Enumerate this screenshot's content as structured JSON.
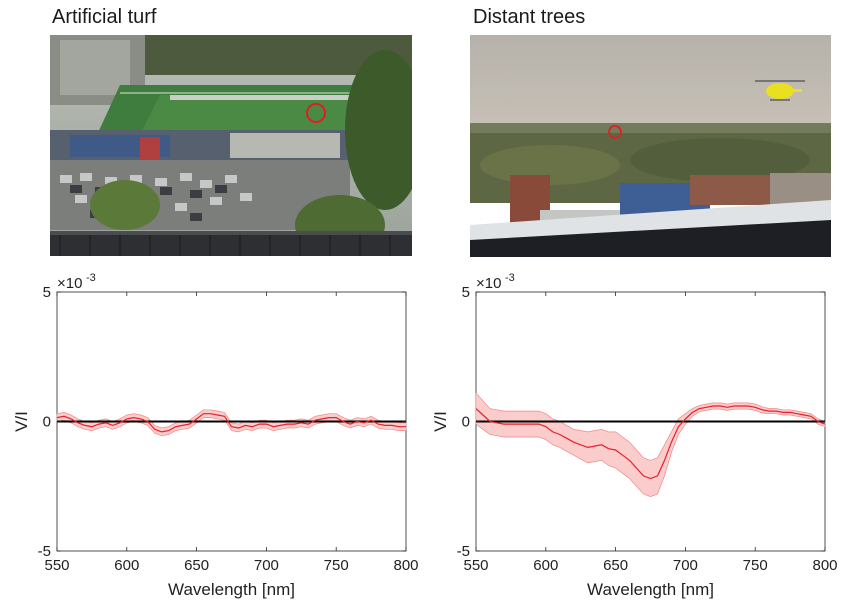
{
  "panels": [
    {
      "title": "Artificial turf"
    },
    {
      "title": "Distant trees"
    }
  ],
  "chart_data": [
    {
      "type": "line",
      "title": "",
      "xlabel": "Wavelength [nm]",
      "ylabel": "V/I",
      "xlim": [
        550,
        800
      ],
      "ylim": [
        -5,
        5
      ],
      "y_exponent_label": "×10",
      "y_exponent_power": "-3",
      "xticks": [
        550,
        600,
        650,
        700,
        750,
        800
      ],
      "xtick_labels": [
        "550",
        "600",
        "650",
        "700",
        "750",
        "800"
      ],
      "yticks": [
        -5,
        0,
        5
      ],
      "ytick_labels": [
        "-5",
        "0",
        "5"
      ],
      "reference_line": 0,
      "colors": {
        "line": "#e8202a",
        "band": "#f9c3c3",
        "reference": "#000000"
      },
      "series": [
        {
          "x": [
            550,
            555,
            560,
            565,
            570,
            575,
            580,
            585,
            590,
            595,
            600,
            605,
            610,
            615,
            620,
            625,
            630,
            635,
            640,
            645,
            650,
            655,
            660,
            665,
            670,
            675,
            680,
            685,
            690,
            695,
            700,
            705,
            710,
            715,
            720,
            725,
            730,
            735,
            740,
            745,
            750,
            755,
            760,
            765,
            770,
            775,
            780,
            785,
            790,
            795,
            800
          ],
          "y": [
            0.15,
            0.2,
            0.1,
            -0.05,
            -0.15,
            -0.2,
            -0.1,
            -0.05,
            -0.15,
            -0.05,
            0.1,
            0.15,
            0.1,
            0.0,
            -0.3,
            -0.4,
            -0.35,
            -0.2,
            -0.15,
            -0.1,
            0.1,
            0.3,
            0.3,
            0.25,
            0.2,
            -0.2,
            -0.25,
            -0.15,
            -0.2,
            -0.1,
            -0.1,
            -0.2,
            -0.15,
            -0.1,
            -0.1,
            -0.05,
            -0.1,
            0.05,
            0.1,
            0.15,
            0.15,
            0.0,
            -0.1,
            0.0,
            -0.05,
            0.05,
            -0.1,
            -0.15,
            -0.15,
            -0.2,
            -0.2
          ],
          "band": 0.15
        }
      ]
    },
    {
      "type": "line",
      "title": "",
      "xlabel": "Wavelength [nm]",
      "ylabel": "V/I",
      "xlim": [
        550,
        800
      ],
      "ylim": [
        -5,
        5
      ],
      "y_exponent_label": "×10",
      "y_exponent_power": "-3",
      "xticks": [
        550,
        600,
        650,
        700,
        750,
        800
      ],
      "xtick_labels": [
        "550",
        "600",
        "650",
        "700",
        "750",
        "800"
      ],
      "yticks": [
        -5,
        0,
        5
      ],
      "ytick_labels": [
        "-5",
        "0",
        "5"
      ],
      "reference_line": 0,
      "colors": {
        "line": "#e8202a",
        "band": "#f9c3c3",
        "reference": "#000000"
      },
      "series": [
        {
          "x": [
            550,
            555,
            560,
            565,
            570,
            575,
            580,
            585,
            590,
            595,
            600,
            605,
            610,
            615,
            620,
            625,
            630,
            635,
            640,
            645,
            650,
            655,
            660,
            665,
            670,
            675,
            680,
            685,
            690,
            695,
            700,
            705,
            710,
            715,
            720,
            725,
            730,
            735,
            740,
            745,
            750,
            755,
            760,
            765,
            770,
            775,
            780,
            785,
            790,
            795,
            800
          ],
          "y": [
            0.5,
            0.25,
            0.0,
            -0.05,
            -0.1,
            -0.1,
            -0.1,
            -0.1,
            -0.1,
            -0.1,
            -0.2,
            -0.4,
            -0.5,
            -0.65,
            -0.8,
            -0.9,
            -1.0,
            -0.95,
            -0.9,
            -1.05,
            -1.1,
            -1.3,
            -1.5,
            -1.8,
            -2.1,
            -2.2,
            -2.1,
            -1.5,
            -0.8,
            -0.2,
            0.1,
            0.35,
            0.5,
            0.55,
            0.6,
            0.6,
            0.55,
            0.6,
            0.6,
            0.6,
            0.55,
            0.45,
            0.4,
            0.4,
            0.35,
            0.35,
            0.3,
            0.25,
            0.2,
            0.0,
            -0.1
          ],
          "band": [
            0.6,
            0.55,
            0.5,
            0.5,
            0.5,
            0.5,
            0.5,
            0.5,
            0.5,
            0.5,
            0.5,
            0.5,
            0.5,
            0.5,
            0.5,
            0.55,
            0.6,
            0.6,
            0.6,
            0.65,
            0.7,
            0.7,
            0.7,
            0.7,
            0.7,
            0.7,
            0.7,
            0.6,
            0.4,
            0.3,
            0.2,
            0.15,
            0.12,
            0.12,
            0.12,
            0.12,
            0.12,
            0.12,
            0.12,
            0.12,
            0.12,
            0.12,
            0.1,
            0.1,
            0.1,
            0.1,
            0.1,
            0.1,
            0.1,
            0.1,
            0.1
          ]
        }
      ]
    }
  ]
}
